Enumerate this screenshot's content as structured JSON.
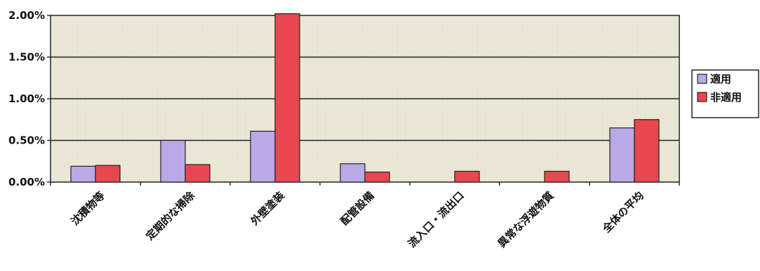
{
  "chart_data": {
    "type": "bar",
    "categories": [
      "沈積物等",
      "定期的な掃除",
      "外壁塗装",
      "配管設備",
      "流入口・流出口",
      "異常な浮遊物質",
      "全体の平均"
    ],
    "series": [
      {
        "name": "適用",
        "color": "#b9a9e6",
        "values": [
          0.19,
          0.5,
          0.61,
          0.22,
          0.0,
          0.0,
          0.65
        ]
      },
      {
        "name": "非適用",
        "color": "#e8474f",
        "values": [
          0.2,
          0.21,
          2.02,
          0.12,
          0.13,
          0.13,
          0.75
        ]
      }
    ],
    "yticks": [
      "0.00%",
      "0.50%",
      "1.00%",
      "1.50%",
      "2.00%"
    ],
    "ylim": [
      0,
      2.0
    ],
    "grid": true,
    "legend": "right",
    "plot_background": "#e9e6d6"
  }
}
